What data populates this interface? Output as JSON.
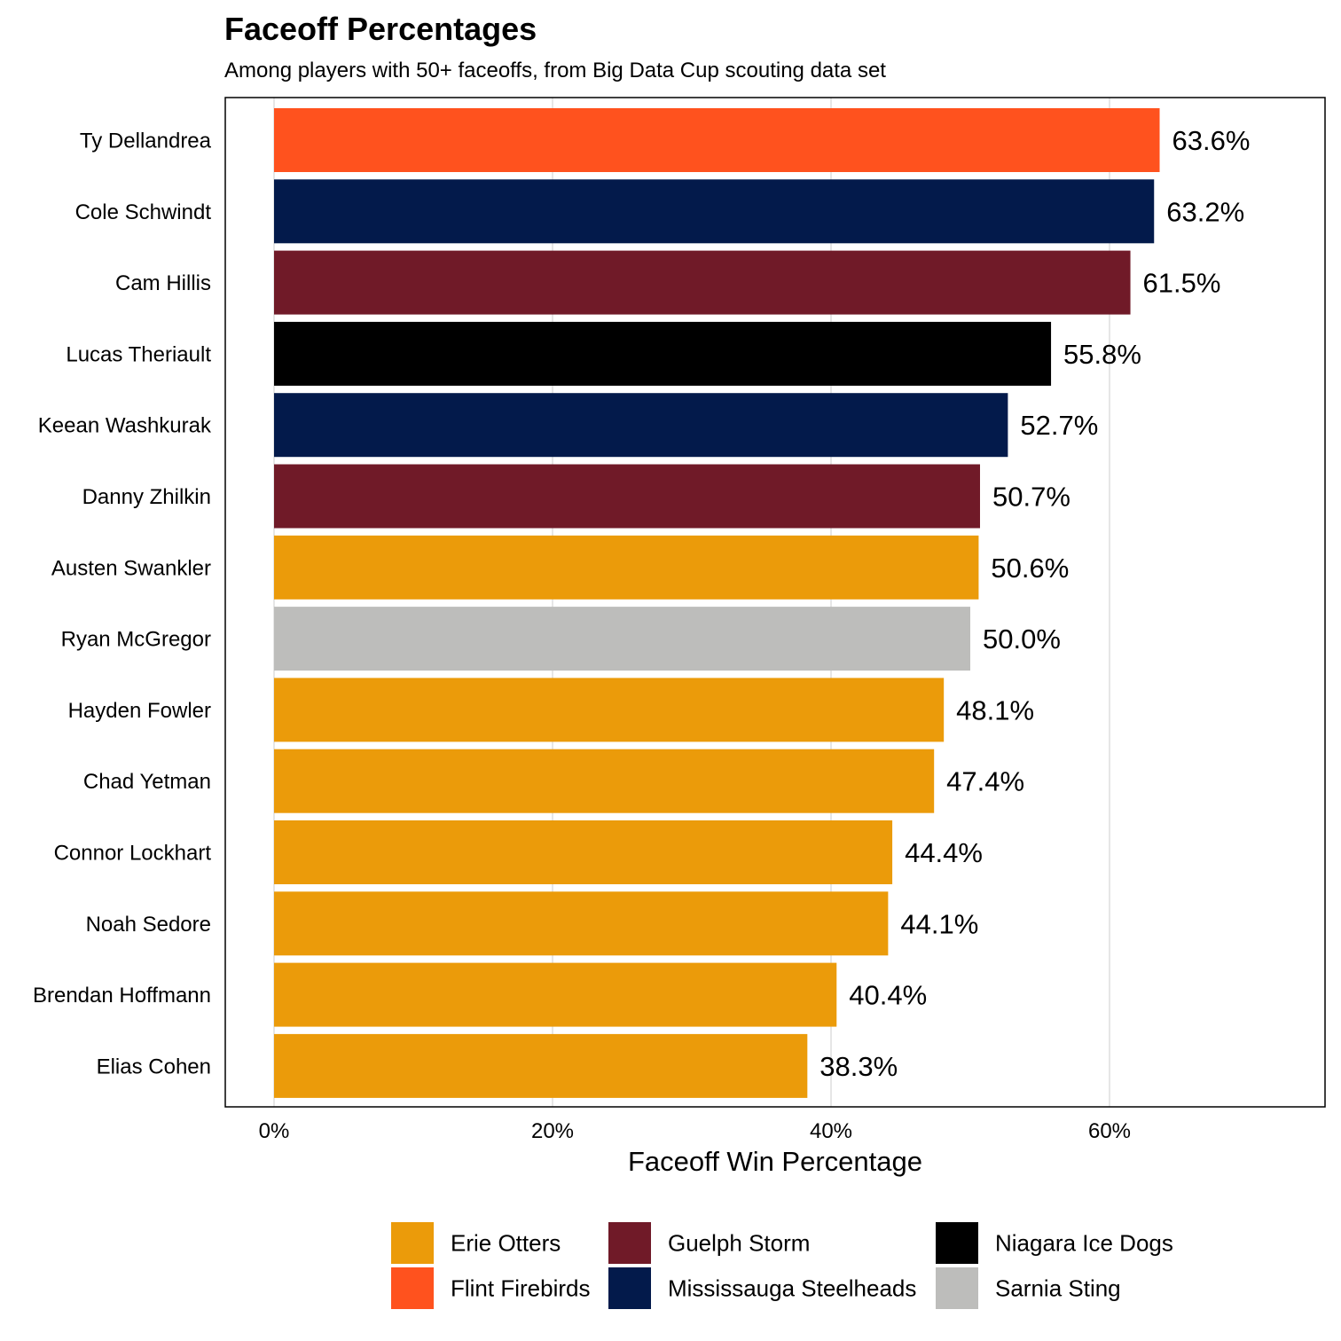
{
  "chart_data": {
    "type": "bar",
    "orientation": "horizontal",
    "title": "Faceoff Percentages",
    "subtitle": "Among players with 50+ faceoffs, from Big Data Cup scouting data set",
    "xlabel": "Faceoff Win Percentage",
    "ylabel": "",
    "xlim": [
      0,
      0.75
    ],
    "xticks": [
      0,
      0.2,
      0.4,
      0.6
    ],
    "xtick_labels": [
      "0%",
      "20%",
      "40%",
      "60%"
    ],
    "grid": "vertical",
    "categories": [
      "Ty Dellandrea",
      "Cole Schwindt",
      "Cam Hillis",
      "Lucas Theriault",
      "Keean Washkurak",
      "Danny Zhilkin",
      "Austen Swankler",
      "Ryan McGregor",
      "Hayden Fowler",
      "Chad Yetman",
      "Connor Lockhart",
      "Noah Sedore",
      "Brendan Hoffmann",
      "Elias Cohen"
    ],
    "values": [
      0.636,
      0.632,
      0.615,
      0.558,
      0.527,
      0.507,
      0.506,
      0.5,
      0.481,
      0.474,
      0.444,
      0.441,
      0.404,
      0.383
    ],
    "value_labels": [
      "63.6%",
      "63.2%",
      "61.5%",
      "55.8%",
      "52.7%",
      "50.7%",
      "50.6%",
      "50.0%",
      "48.1%",
      "47.4%",
      "44.4%",
      "44.1%",
      "40.4%",
      "38.3%"
    ],
    "teams": [
      "Flint Firebirds",
      "Mississauga Steelheads",
      "Guelph Storm",
      "Niagara Ice Dogs",
      "Mississauga Steelheads",
      "Guelph Storm",
      "Erie Otters",
      "Sarnia Sting",
      "Erie Otters",
      "Erie Otters",
      "Erie Otters",
      "Erie Otters",
      "Erie Otters",
      "Erie Otters"
    ],
    "legend_position": "bottom",
    "legend": [
      {
        "name": "Erie Otters",
        "color": "#EB9B0A"
      },
      {
        "name": "Flint Firebirds",
        "color": "#FF521E"
      },
      {
        "name": "Guelph Storm",
        "color": "#701A28"
      },
      {
        "name": "Mississauga Steelheads",
        "color": "#031A4B"
      },
      {
        "name": "Niagara Ice Dogs",
        "color": "#000000"
      },
      {
        "name": "Sarnia Sting",
        "color": "#BDBDBB"
      }
    ]
  }
}
